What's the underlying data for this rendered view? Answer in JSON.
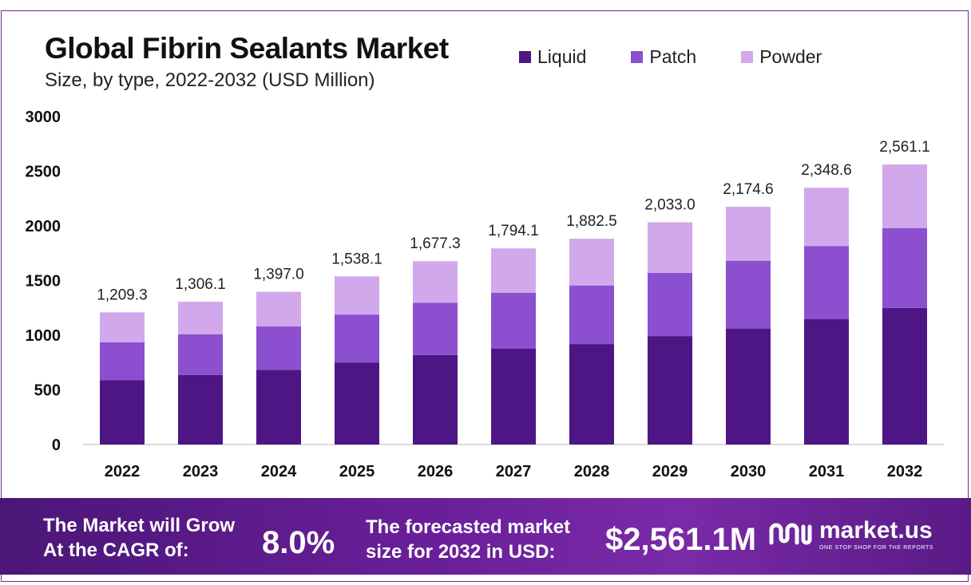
{
  "header": {
    "title": "Global Fibrin Sealants Market",
    "subtitle": "Size, by type, 2022-2032 (USD Million)"
  },
  "legend": [
    {
      "label": "Liquid",
      "color": "#4e1684"
    },
    {
      "label": "Patch",
      "color": "#8c4fcf"
    },
    {
      "label": "Powder",
      "color": "#d2a8ec"
    }
  ],
  "chart_data": {
    "type": "bar",
    "stacked": true,
    "categories": [
      "2022",
      "2023",
      "2024",
      "2025",
      "2026",
      "2027",
      "2028",
      "2029",
      "2030",
      "2031",
      "2032"
    ],
    "series": [
      {
        "name": "Liquid",
        "color": "#4e1684",
        "values": [
          590,
          637,
          682,
          751,
          818,
          876,
          919,
          992,
          1061,
          1146,
          1250
        ]
      },
      {
        "name": "Patch",
        "color": "#8c4fcf",
        "values": [
          345,
          372,
          398,
          438,
          478,
          511,
          536,
          579,
          620,
          670,
          730
        ]
      },
      {
        "name": "Powder",
        "color": "#d2a8ec",
        "values": [
          274.3,
          297.1,
          317.0,
          349.1,
          381.3,
          407.1,
          427.5,
          462.0,
          493.6,
          532.6,
          581.1
        ]
      }
    ],
    "totals": [
      "1,209.3",
      "1,306.1",
      "1,397.0",
      "1,538.1",
      "1,677.3",
      "1,794.1",
      "1,882.5",
      "2,033.0",
      "2,174.6",
      "2,348.6",
      "2,561.1"
    ],
    "ylim": [
      0,
      3000
    ],
    "yticks": [
      "0",
      "500",
      "1000",
      "1500",
      "2000",
      "2500",
      "3000"
    ],
    "grid": false,
    "legend_position": "top-right"
  },
  "banner": {
    "cagr_text_line1": "The Market will Grow",
    "cagr_text_line2": "At the CAGR of:",
    "cagr_value": "8.0%",
    "forecast_text_line1": "The forecasted market",
    "forecast_text_line2": "size for 2032 in USD:",
    "forecast_value": "$2,561.1M"
  },
  "logo": {
    "name": "market.us",
    "tagline": "ONE STOP SHOP FOR THE REPORTS",
    "icon": "market-us-logo-icon"
  }
}
